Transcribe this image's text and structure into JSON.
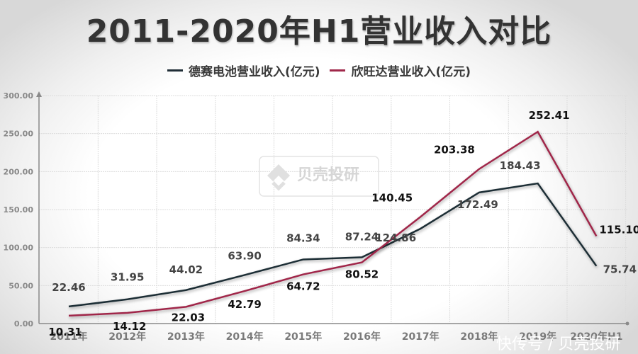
{
  "chart_data": {
    "type": "line",
    "title": "2011-2020年H1营业收入对比",
    "categories": [
      "2011年",
      "2012年",
      "2013年",
      "2014年",
      "2015年",
      "2016年",
      "2017年",
      "2018年",
      "2019年",
      "2020年H1"
    ],
    "series": [
      {
        "name": "德赛电池营业收入(亿元)",
        "color": "#1f2d36",
        "values": [
          22.46,
          31.95,
          44.02,
          63.9,
          84.34,
          87.24,
          124.86,
          172.49,
          184.43,
          75.74
        ]
      },
      {
        "name": "欣旺达营业收入(亿元)",
        "color": "#a0284a",
        "values": [
          10.31,
          14.12,
          22.03,
          42.79,
          64.72,
          80.52,
          140.45,
          203.38,
          252.41,
          115.1
        ]
      }
    ],
    "yticks": [
      "0.00",
      "50.00",
      "100.00",
      "150.00",
      "200.00",
      "250.00",
      "300.00"
    ],
    "ylim": [
      0,
      300
    ],
    "xlabel": "",
    "ylabel": "",
    "grid": true,
    "legend_position": "top"
  },
  "legend": {
    "series1": "德赛电池营业收入(亿元)",
    "series2": "欣旺达营业收入(亿元)"
  },
  "watermark": {
    "center_text": "贝壳投研",
    "footer_text": "快传号 / 贝壳投研"
  }
}
